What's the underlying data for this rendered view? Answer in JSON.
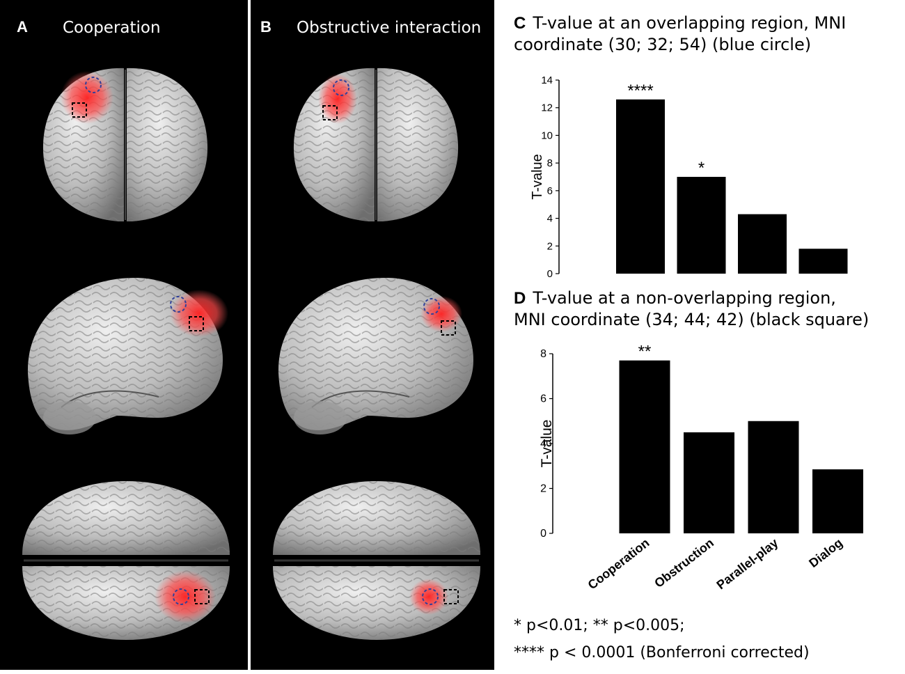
{
  "panel_a": {
    "letter": "A",
    "title": "Cooperation"
  },
  "panel_b": {
    "letter": "B",
    "title": "Obstructive interaction"
  },
  "colors": {
    "background_panels": "#000000",
    "activation": "#ff2a2a",
    "circle": "#2f3f9a",
    "square": "#000000",
    "bars": "#000000"
  },
  "chart_c": {
    "letter": "C",
    "heading_line1": "T-value at an overlapping region, MNI",
    "heading_line2": "coordinate (30; 32; 54) (blue circle)"
  },
  "chart_d": {
    "letter": "D",
    "heading_line1": "T-value at a non-overlapping region,",
    "heading_line2": "MNI coordinate (34; 44; 42) (black square)"
  },
  "chart_data": [
    {
      "type": "bar",
      "categories": [
        "Cooperation",
        "Obstruction",
        "Parallel-play",
        "Dialog"
      ],
      "values": [
        12.6,
        7.0,
        4.3,
        1.8
      ],
      "significance": [
        "****",
        "*",
        "",
        ""
      ],
      "ylabel": "T-value",
      "ylim": [
        0,
        14
      ],
      "yticks": [
        0,
        2,
        4,
        6,
        8,
        10,
        12,
        14
      ]
    },
    {
      "type": "bar",
      "categories": [
        "Cooperation",
        "Obstruction",
        "Parallel-play",
        "Dialog"
      ],
      "values": [
        7.7,
        4.5,
        5.0,
        2.85
      ],
      "significance": [
        "**",
        "",
        "",
        ""
      ],
      "ylabel": "T-value",
      "ylim": [
        0,
        8
      ],
      "yticks": [
        0,
        2,
        4,
        6,
        8
      ]
    }
  ],
  "footnote": {
    "line1": "* p<0.01; ** p<0.005;",
    "line2": "**** p < 0.0001 (Bonferroni corrected)"
  }
}
